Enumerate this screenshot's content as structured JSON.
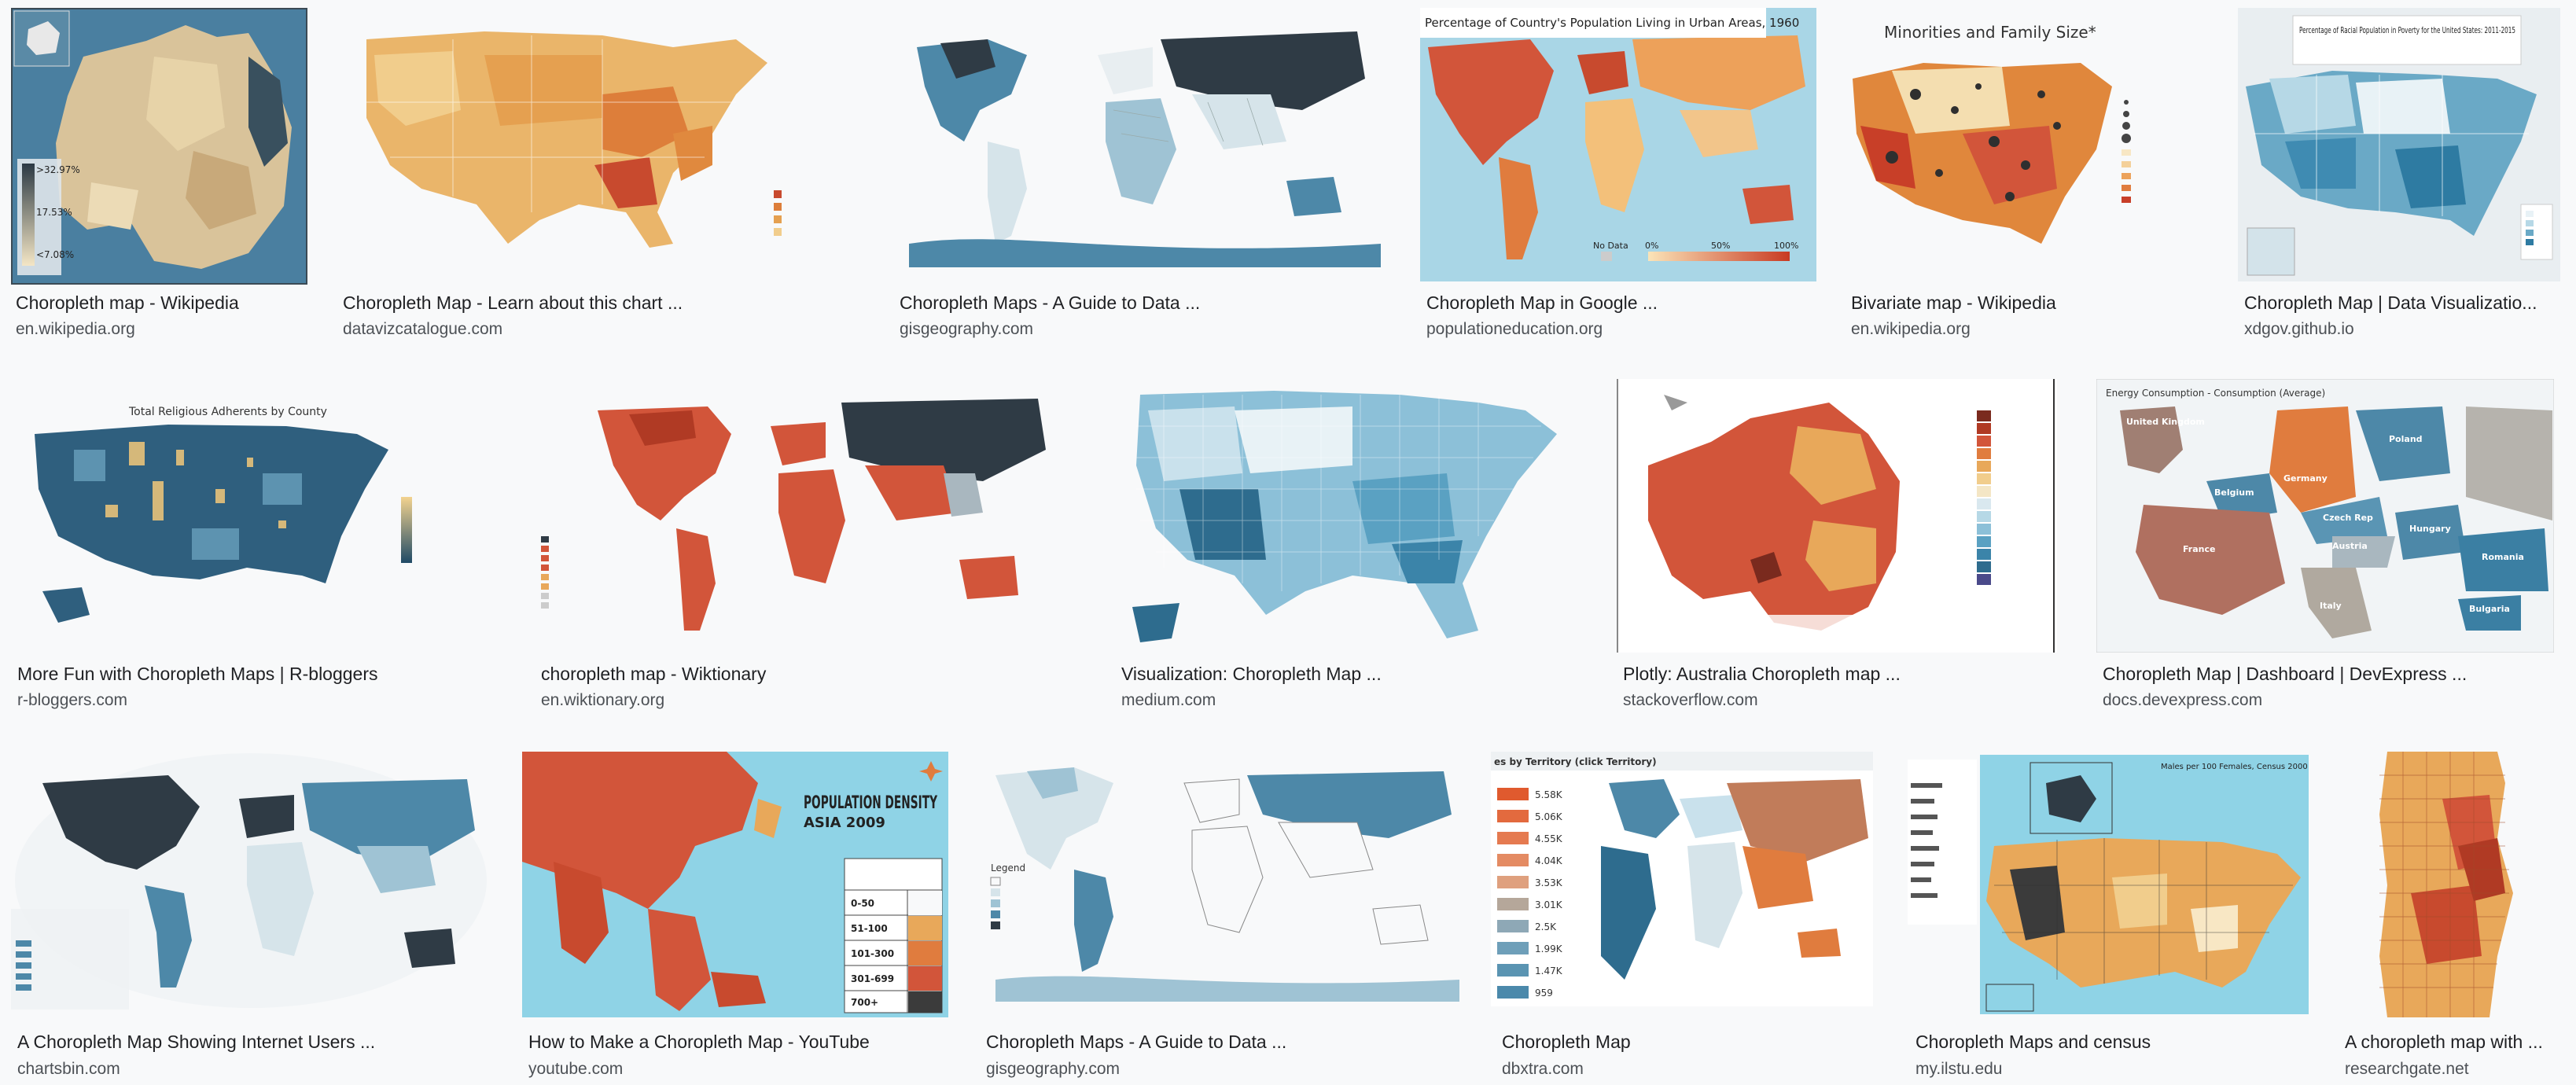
{
  "results": [
    {
      "title": "Choropleth map - Wikipedia",
      "source": "en.wikipedia.org",
      "legend": [
        ">32.97%",
        "17.53%",
        "<7.08%"
      ]
    },
    {
      "title": "Choropleth Map - Learn about this chart ...",
      "source": "datavizcatalogue.com"
    },
    {
      "title": "Choropleth Maps - A Guide to Data ...",
      "source": "gisgeography.com"
    },
    {
      "title": "Choropleth Map in Google ...",
      "source": "populationeducation.org",
      "heading": "Percentage of Country's Population Living in Urban Areas, 1960",
      "legend": [
        "No Data",
        "0%",
        "50%",
        "100%"
      ]
    },
    {
      "title": "Bivariate map - Wikipedia",
      "source": "en.wikipedia.org",
      "heading": "Minorities and Family Size*"
    },
    {
      "title": "Choropleth Map | Data Visualizatio...",
      "source": "xdgov.github.io",
      "heading": "Percentage of Racial Population in Poverty for the United States: 2011-2015"
    },
    {
      "title": "More Fun with Choropleth Maps | R-bloggers",
      "source": "r-bloggers.com",
      "heading": "Total Religious Adherents by County"
    },
    {
      "title": "choropleth map - Wiktionary",
      "source": "en.wiktionary.org"
    },
    {
      "title": "Visualization: Choropleth Map ...",
      "source": "medium.com"
    },
    {
      "title": "Plotly: Australia Choropleth map ...",
      "source": "stackoverflow.com"
    },
    {
      "title": "Choropleth Map | Dashboard | DevExpress ...",
      "source": "docs.devexpress.com",
      "heading": "Energy Consumption - Consumption (Average)",
      "labels": [
        "United Kingdom",
        "Germany",
        "Poland",
        "Belgium",
        "Czech Rep",
        "France",
        "Austria",
        "Hungary",
        "Romania",
        "Italy",
        "Bulgaria"
      ]
    },
    {
      "title": "A Choropleth Map Showing Internet Users ...",
      "source": "chartsbin.com"
    },
    {
      "title": "How to Make a Choropleth Map - YouTube",
      "source": "youtube.com",
      "heading": "POPULATION DENSITY ASIA 2009",
      "key": [
        "0-50",
        "51-100",
        "101-300",
        "301-699",
        "700+"
      ]
    },
    {
      "title": "Choropleth Maps - A Guide to Data ...",
      "source": "gisgeography.com",
      "legend_title": "Legend"
    },
    {
      "title": "Choropleth Map",
      "source": "dbxtra.com",
      "heading": "es by Territory (click Territory)",
      "legend": [
        "5.58K",
        "5.06K",
        "4.55K",
        "4.04K",
        "3.53K",
        "3.01K",
        "2.5K",
        "1.99K",
        "1.47K",
        "959"
      ]
    },
    {
      "title": "Choropleth Maps and census",
      "source": "my.ilstu.edu",
      "heading": "Males per 100 Females, Census 2000"
    },
    {
      "title": "A choropleth map with ...",
      "source": "researchgate.net"
    }
  ],
  "colors": {
    "ocean": "#9fd0e0",
    "orange": "#e8a85a",
    "red": "#d2553a",
    "blue": "#4d88a8",
    "dark": "#2f3b45"
  }
}
